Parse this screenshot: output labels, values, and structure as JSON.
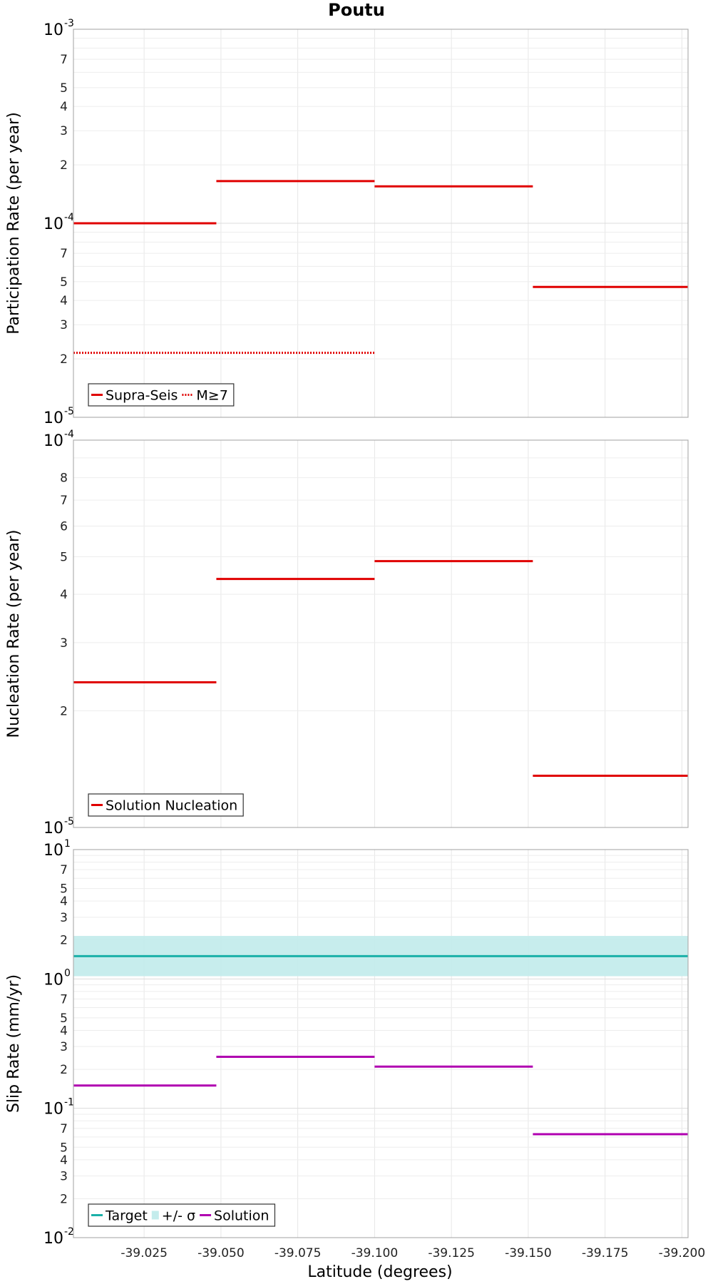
{
  "title": "Poutu",
  "xlabel": "Latitude (degrees)",
  "x_ticks": [
    "-39.025",
    "-39.050",
    "-39.075",
    "-39.100",
    "-39.125",
    "-39.150",
    "-39.175",
    "-39.200"
  ],
  "colors": {
    "supra": "#e00000",
    "target": "#1ab0a8",
    "sigma": "#c4ecec",
    "solution": "#b000b0"
  },
  "chart_data": [
    {
      "type": "line",
      "ylabel": "Participation Rate (per year)",
      "yscale": "log",
      "xlim": [
        -39.002,
        -39.202
      ],
      "ylim": [
        1e-05,
        0.001
      ],
      "grid": true,
      "legend": "bottom-left",
      "series": [
        {
          "name": "Supra-Seis",
          "style": "solid",
          "segments": [
            {
              "x": [
                -39.002,
                -39.0485
              ],
              "y": 0.0001
            },
            {
              "x": [
                -39.0485,
                -39.1
              ],
              "y": 0.000165
            },
            {
              "x": [
                -39.1,
                -39.1515
              ],
              "y": 0.000155
            },
            {
              "x": [
                -39.1515,
                -39.202
              ],
              "y": 4.7e-05
            }
          ]
        },
        {
          "name": "M≥7",
          "style": "dotted",
          "segments": [
            {
              "x": [
                -39.002,
                -39.1
              ],
              "y": 2.15e-05
            }
          ]
        }
      ]
    },
    {
      "type": "line",
      "ylabel": "Nucleation Rate (per year)",
      "yscale": "log",
      "xlim": [
        -39.002,
        -39.202
      ],
      "ylim": [
        1e-05,
        0.0001
      ],
      "grid": true,
      "legend": "bottom-left",
      "series": [
        {
          "name": "Solution Nucleation",
          "style": "solid",
          "segments": [
            {
              "x": [
                -39.002,
                -39.0485
              ],
              "y": 2.37e-05
            },
            {
              "x": [
                -39.0485,
                -39.1
              ],
              "y": 4.38e-05
            },
            {
              "x": [
                -39.1,
                -39.1515
              ],
              "y": 4.87e-05
            },
            {
              "x": [
                -39.1515,
                -39.202
              ],
              "y": 1.36e-05
            }
          ]
        }
      ]
    },
    {
      "type": "line",
      "ylabel": "Slip Rate (mm/yr)",
      "yscale": "log",
      "xlim": [
        -39.002,
        -39.202
      ],
      "ylim": [
        0.01,
        10
      ],
      "grid": true,
      "legend": "bottom-left",
      "series": [
        {
          "name": "Target",
          "style": "solid",
          "segments": [
            {
              "x": [
                -39.002,
                -39.202
              ],
              "y": 1.5
            }
          ]
        },
        {
          "name": "+/- σ",
          "style": "band",
          "segments": [
            {
              "x": [
                -39.002,
                -39.202
              ],
              "y_low": 1.05,
              "y_high": 2.15
            }
          ]
        },
        {
          "name": "Solution",
          "style": "solid",
          "segments": [
            {
              "x": [
                -39.002,
                -39.0485
              ],
              "y": 0.15
            },
            {
              "x": [
                -39.0485,
                -39.1
              ],
              "y": 0.25
            },
            {
              "x": [
                -39.1,
                -39.1515
              ],
              "y": 0.21
            },
            {
              "x": [
                -39.1515,
                -39.202
              ],
              "y": 0.063
            }
          ]
        }
      ]
    }
  ]
}
